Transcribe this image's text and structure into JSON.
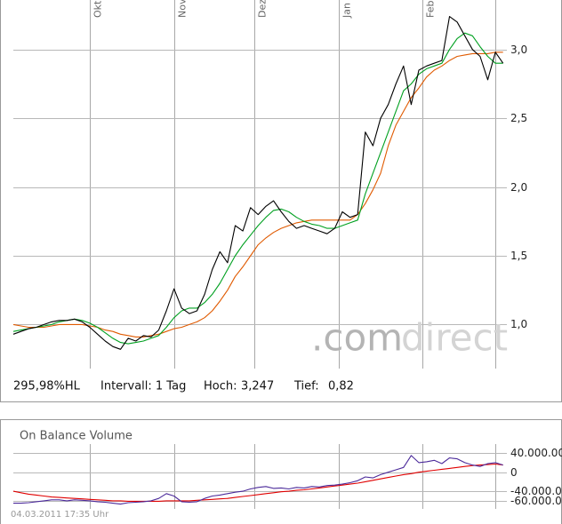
{
  "chart_data": [
    {
      "type": "line",
      "x": [
        0,
        2,
        4,
        6,
        8,
        10,
        12,
        14,
        16,
        18,
        20,
        22,
        24,
        26,
        28,
        30,
        32,
        34,
        36,
        38,
        40,
        42,
        44,
        46,
        48,
        50,
        52,
        54,
        56,
        58,
        60,
        62,
        64,
        66,
        68,
        70,
        72,
        74,
        76,
        78,
        80,
        82,
        84,
        86,
        88,
        90,
        92,
        94,
        96,
        98,
        100,
        102,
        104,
        106,
        108,
        110,
        112,
        114,
        116,
        118,
        120,
        122,
        124,
        126,
        128
      ],
      "xlim": [
        0,
        129
      ],
      "xticks": [
        {
          "value": 20,
          "label": "Okt"
        },
        {
          "value": 42,
          "label": "Nov"
        },
        {
          "value": 63,
          "label": "Dez"
        },
        {
          "value": 85,
          "label": "Jan"
        },
        {
          "value": 107,
          "label": "Feb"
        },
        {
          "value": 126,
          "label": null
        }
      ],
      "ylim": [
        0.68,
        3.36
      ],
      "yticks": [
        {
          "value": 1,
          "label": "1,0"
        },
        {
          "value": 1.5,
          "label": "1,5"
        },
        {
          "value": 2,
          "label": "2,0"
        },
        {
          "value": 2.5,
          "label": "2,5"
        },
        {
          "value": 3,
          "label": "3,0"
        }
      ],
      "grid": true,
      "series": [
        {
          "color": "#e05a00",
          "values": [
            1.0,
            0.99,
            0.98,
            0.98,
            0.98,
            0.99,
            1.0,
            1.0,
            1.0,
            1.0,
            0.99,
            0.98,
            0.96,
            0.95,
            0.93,
            0.92,
            0.91,
            0.91,
            0.92,
            0.93,
            0.95,
            0.97,
            0.98,
            1.0,
            1.02,
            1.05,
            1.1,
            1.17,
            1.25,
            1.35,
            1.42,
            1.5,
            1.58,
            1.63,
            1.67,
            1.7,
            1.72,
            1.74,
            1.75,
            1.76,
            1.76,
            1.76,
            1.76,
            1.76,
            1.76,
            1.8,
            1.88,
            1.98,
            2.1,
            2.3,
            2.45,
            2.55,
            2.65,
            2.72,
            2.8,
            2.85,
            2.88,
            2.92,
            2.95,
            2.96,
            2.97,
            2.97,
            2.97,
            2.98,
            2.98
          ]
        },
        {
          "color": "#00a020",
          "values": [
            0.95,
            0.96,
            0.97,
            0.98,
            0.99,
            1.0,
            1.02,
            1.03,
            1.04,
            1.03,
            1.01,
            0.98,
            0.94,
            0.9,
            0.87,
            0.86,
            0.87,
            0.88,
            0.9,
            0.92,
            0.98,
            1.05,
            1.1,
            1.12,
            1.12,
            1.16,
            1.22,
            1.3,
            1.4,
            1.5,
            1.58,
            1.65,
            1.72,
            1.78,
            1.83,
            1.84,
            1.82,
            1.78,
            1.75,
            1.73,
            1.72,
            1.7,
            1.7,
            1.72,
            1.74,
            1.76,
            1.95,
            2.1,
            2.25,
            2.4,
            2.55,
            2.7,
            2.75,
            2.82,
            2.86,
            2.88,
            2.9,
            3.0,
            3.08,
            3.12,
            3.1,
            3.02,
            2.95,
            2.9,
            2.9
          ]
        },
        {
          "color": "#000000",
          "values": [
            0.93,
            0.95,
            0.97,
            0.98,
            1.0,
            1.02,
            1.03,
            1.03,
            1.04,
            1.02,
            0.98,
            0.93,
            0.88,
            0.84,
            0.82,
            0.9,
            0.88,
            0.92,
            0.91,
            0.96,
            1.1,
            1.26,
            1.12,
            1.08,
            1.1,
            1.22,
            1.4,
            1.53,
            1.45,
            1.72,
            1.68,
            1.85,
            1.8,
            1.86,
            1.9,
            1.82,
            1.75,
            1.7,
            1.72,
            1.7,
            1.68,
            1.66,
            1.7,
            1.82,
            1.78,
            1.8,
            2.4,
            2.3,
            2.5,
            2.6,
            2.75,
            2.88,
            2.6,
            2.85,
            2.88,
            2.9,
            2.92,
            3.24,
            3.2,
            3.1,
            3.0,
            2.95,
            2.78,
            2.98,
            2.9
          ]
        }
      ],
      "watermark": [
        ".com",
        "direct"
      ],
      "info": {
        "range": "295,98%HL",
        "interval": "Intervall: 1 Tag",
        "high_label": "Hoch:",
        "high": "3,247",
        "low_label": "Tief:",
        "low": "0,82"
      }
    },
    {
      "type": "line",
      "title": "On Balance Volume",
      "x": [
        0,
        2,
        4,
        6,
        8,
        10,
        12,
        14,
        16,
        18,
        20,
        22,
        24,
        26,
        28,
        30,
        32,
        34,
        36,
        38,
        40,
        42,
        44,
        46,
        48,
        50,
        52,
        54,
        56,
        58,
        60,
        62,
        64,
        66,
        68,
        70,
        72,
        74,
        76,
        78,
        80,
        82,
        84,
        86,
        88,
        90,
        92,
        94,
        96,
        98,
        100,
        102,
        104,
        106,
        108,
        110,
        112,
        114,
        116,
        118,
        120,
        122,
        124,
        126,
        128
      ],
      "xlim": [
        0,
        129
      ],
      "ylim": [
        -77000000,
        59000000
      ],
      "yticks": [
        {
          "value": 40000000,
          "label": "40.000.000"
        },
        0,
        {
          "value": -40000000,
          "label": "-40.000.000"
        },
        {
          "value": -60000000,
          "label": "-60.000.000"
        }
      ],
      "grid": true,
      "series": [
        {
          "color": "#e00000",
          "values": [
            -40000000,
            -43000000,
            -46000000,
            -48000000,
            -50000000,
            -52000000,
            -53000000,
            -54000000,
            -55000000,
            -56000000,
            -57000000,
            -58000000,
            -59000000,
            -60000000,
            -60000000,
            -61000000,
            -61000000,
            -61000000,
            -61000000,
            -61000000,
            -60000000,
            -60000000,
            -60000000,
            -60000000,
            -59000000,
            -58000000,
            -57000000,
            -56000000,
            -55000000,
            -53000000,
            -51000000,
            -49000000,
            -47000000,
            -45000000,
            -43000000,
            -41000000,
            -40000000,
            -38000000,
            -37000000,
            -35000000,
            -33000000,
            -31000000,
            -29000000,
            -27000000,
            -25000000,
            -23000000,
            -20000000,
            -17000000,
            -14000000,
            -11000000,
            -8000000,
            -5000000,
            -3000000,
            0,
            2000000,
            4000000,
            6000000,
            8000000,
            10000000,
            12000000,
            14000000,
            15000000,
            16000000,
            17000000,
            15000000
          ]
        },
        {
          "color": "#4b2a9a",
          "values": [
            -65000000,
            -65000000,
            -64000000,
            -62000000,
            -60000000,
            -58000000,
            -58000000,
            -60000000,
            -58000000,
            -59000000,
            -60000000,
            -62000000,
            -63000000,
            -65000000,
            -67000000,
            -64000000,
            -63000000,
            -62000000,
            -60000000,
            -55000000,
            -45000000,
            -50000000,
            -62000000,
            -63000000,
            -62000000,
            -55000000,
            -50000000,
            -48000000,
            -45000000,
            -42000000,
            -40000000,
            -35000000,
            -32000000,
            -30000000,
            -34000000,
            -33000000,
            -35000000,
            -32000000,
            -33000000,
            -30000000,
            -31000000,
            -28000000,
            -27000000,
            -25000000,
            -22000000,
            -18000000,
            -10000000,
            -12000000,
            -5000000,
            0,
            5000000,
            10000000,
            35000000,
            20000000,
            22000000,
            25000000,
            18000000,
            30000000,
            28000000,
            20000000,
            15000000,
            12000000,
            18000000,
            20000000,
            15000000
          ]
        }
      ]
    }
  ],
  "footer": "04.03.2011 17:35 Uhr"
}
